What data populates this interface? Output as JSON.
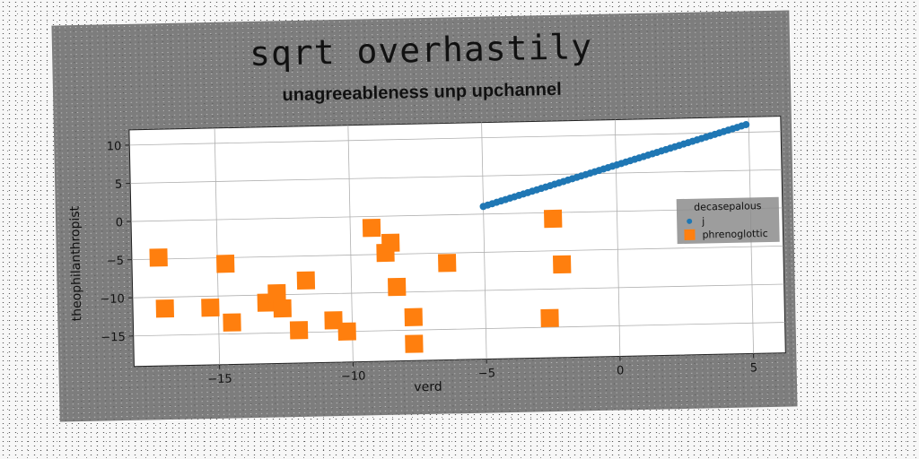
{
  "chart_data": {
    "type": "scatter",
    "title": "sqrt overhastily",
    "subtitle": "unagreeableness unp upchannel",
    "xlabel": "verd",
    "ylabel": "theophilanthropist",
    "xlim": [
      -18.2,
      6.2
    ],
    "ylim": [
      -19,
      12
    ],
    "xticks": [
      -15,
      -10,
      -5,
      0,
      5
    ],
    "xtick_labels": [
      "−15",
      "−10",
      "−5",
      "0",
      "5"
    ],
    "yticks": [
      -15,
      -10,
      -5,
      0,
      5,
      10
    ],
    "ytick_labels": [
      "−15",
      "−10",
      "−5",
      "0",
      "5",
      "10"
    ],
    "grid": true,
    "legend": {
      "title": "decasepalous",
      "placement": "right"
    },
    "series": [
      {
        "name": "j",
        "marker": "circle",
        "color": "#1f77b4",
        "line": {
          "x_start": -5.0,
          "x_end": 4.9,
          "y_start": 1.0,
          "y_end": 11.0,
          "n_points": 60
        }
      },
      {
        "name": "phrenoglottic",
        "marker": "square",
        "color": "#ff7f0e",
        "points": [
          [
            -17.2,
            -4.8
          ],
          [
            -17.0,
            -11.5
          ],
          [
            -15.3,
            -11.5
          ],
          [
            -14.7,
            -5.8
          ],
          [
            -14.5,
            -13.5
          ],
          [
            -13.2,
            -11.0
          ],
          [
            -12.8,
            -9.8
          ],
          [
            -12.6,
            -11.8
          ],
          [
            -12.0,
            -14.7
          ],
          [
            -11.7,
            -8.2
          ],
          [
            -10.7,
            -13.5
          ],
          [
            -10.2,
            -15.0
          ],
          [
            -9.2,
            -1.5
          ],
          [
            -8.7,
            -4.8
          ],
          [
            -8.5,
            -3.5
          ],
          [
            -8.3,
            -9.3
          ],
          [
            -7.7,
            -13.3
          ],
          [
            -7.7,
            -16.8
          ],
          [
            -6.4,
            -6.3
          ],
          [
            -2.6,
            -13.8
          ],
          [
            -2.4,
            -0.8
          ],
          [
            -2.1,
            -6.8
          ]
        ]
      }
    ]
  }
}
